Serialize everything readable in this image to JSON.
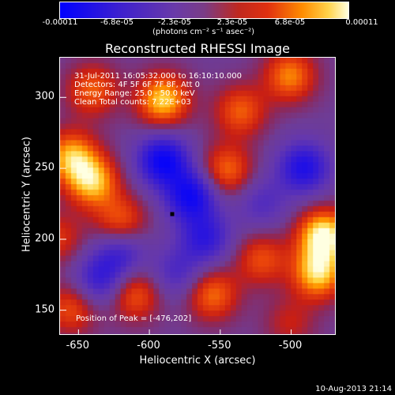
{
  "colorbar": {
    "ticks": [
      "-0.00011",
      "-6.8e-05",
      "-2.3e-05",
      "2.3e-05",
      "6.8e-05",
      "0.00011"
    ],
    "unit": "(photons cm⁻² s⁻¹ asec⁻²)"
  },
  "info": {
    "time": "31-Jul-2011 16:05:32.000 to 16:10:10.000",
    "detectors": "Detectors: 4F 5F 6F 7F 8F, Att 0",
    "energy": "Energy Range: 25.0 - 50.0 keV",
    "clean": "Clean    Total counts: 7.22E+03",
    "peak": "Position of Peak = [-476,202]"
  },
  "footer": {
    "timestamp": "10-Aug-2013 21:14"
  },
  "chart_data": {
    "type": "heatmap",
    "title": "Reconstructed RHESSI Image",
    "xlabel": "Heliocentric X (arcsec)",
    "ylabel": "Heliocentric Y (arcsec)",
    "xlim": [
      -663,
      -468
    ],
    "ylim": [
      132,
      328
    ],
    "xticks": [
      -650,
      -600,
      -550,
      -500
    ],
    "yticks": [
      150,
      200,
      250,
      300
    ],
    "zlim": [
      -0.00011,
      0.00011
    ],
    "peak": [
      -476,
      202
    ],
    "marker": [
      -584,
      218
    ],
    "sources": [
      {
        "x": -640,
        "y": 305,
        "v": 0.55
      },
      {
        "x": -590,
        "y": 298,
        "v": 0.85
      },
      {
        "x": -655,
        "y": 258,
        "v": 0.75
      },
      {
        "x": -640,
        "y": 240,
        "v": 0.8
      },
      {
        "x": -620,
        "y": 212,
        "v": 0.55
      },
      {
        "x": -545,
        "y": 248,
        "v": 0.6
      },
      {
        "x": -535,
        "y": 290,
        "v": 0.55
      },
      {
        "x": -500,
        "y": 315,
        "v": 0.65
      },
      {
        "x": -476,
        "y": 202,
        "v": 1.0
      },
      {
        "x": -480,
        "y": 175,
        "v": 0.85
      },
      {
        "x": -520,
        "y": 185,
        "v": 0.5
      },
      {
        "x": -555,
        "y": 160,
        "v": 0.6
      },
      {
        "x": -610,
        "y": 160,
        "v": 0.55
      },
      {
        "x": -655,
        "y": 150,
        "v": 0.5
      },
      {
        "x": -665,
        "y": 200,
        "v": 0.4
      },
      {
        "x": -500,
        "y": 140,
        "v": 0.3
      },
      {
        "x": -590,
        "y": 255,
        "v": -0.9
      },
      {
        "x": -570,
        "y": 230,
        "v": -0.85
      },
      {
        "x": -560,
        "y": 200,
        "v": -0.6
      },
      {
        "x": -490,
        "y": 250,
        "v": -0.75
      },
      {
        "x": -620,
        "y": 190,
        "v": -0.5
      },
      {
        "x": -635,
        "y": 170,
        "v": -0.55
      },
      {
        "x": -580,
        "y": 175,
        "v": -0.4
      },
      {
        "x": -520,
        "y": 225,
        "v": -0.35
      }
    ]
  }
}
